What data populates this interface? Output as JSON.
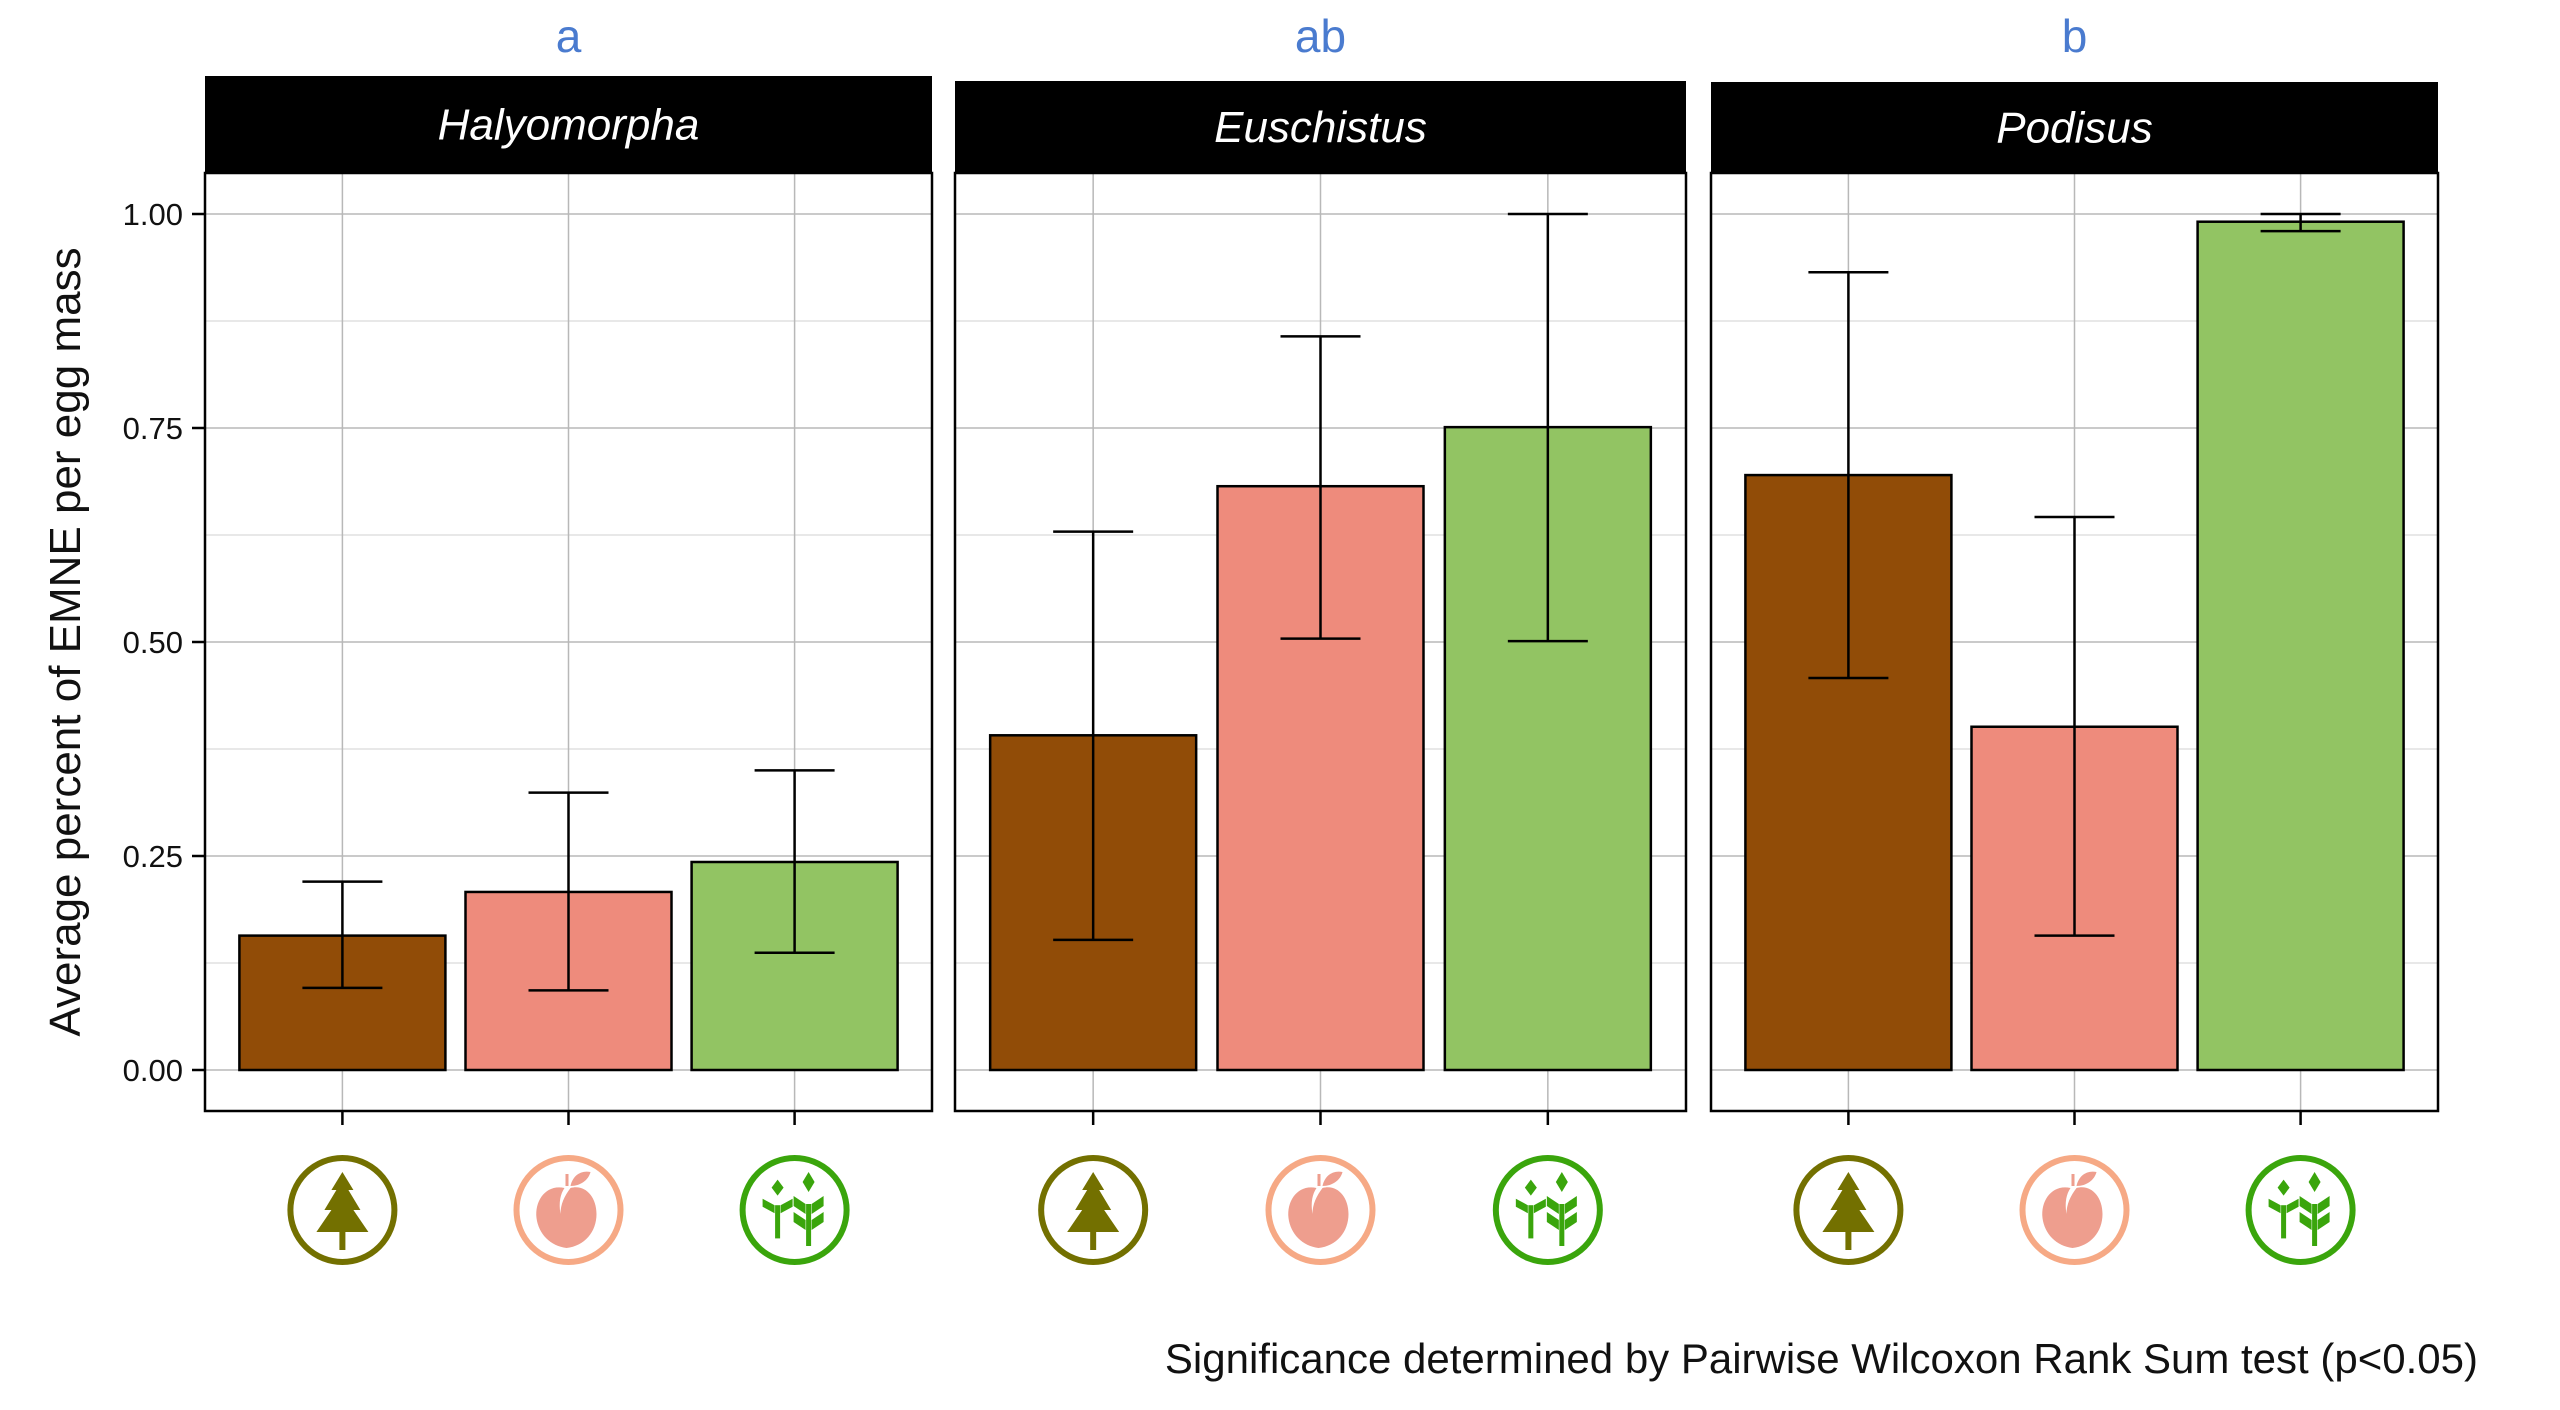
{
  "chart_data": {
    "type": "bar",
    "title": "",
    "ylabel": "Average percent of EMNE per egg mass",
    "xlabel": "",
    "ylim": [
      0,
      1.0
    ],
    "yticks": [
      "0.00",
      "0.25",
      "0.50",
      "0.75",
      "1.00"
    ],
    "ytick_values": [
      0,
      0.25,
      0.5,
      0.75,
      1.0
    ],
    "grid": true,
    "categories": [
      "forest",
      "orchard",
      "field crop"
    ],
    "category_icons": [
      "tree-icon",
      "peach-icon",
      "grain-icon"
    ],
    "category_colors": [
      "#914c07",
      "#ee8b7c",
      "#92c463"
    ],
    "icon_colors": [
      "#737000",
      "#f6a985",
      "#3aa50c"
    ],
    "icon_fill_colors": [
      "#737000",
      "#ee9e8e",
      "#3aa50c"
    ],
    "panels": [
      {
        "name": "Halyomorpha",
        "significance": "a",
        "values": [
          0.157,
          0.208,
          0.243
        ],
        "error_low": [
          0.096,
          0.093,
          0.137
        ],
        "error_high": [
          0.22,
          0.324,
          0.35
        ]
      },
      {
        "name": "Euschistus",
        "significance": "ab",
        "values": [
          0.391,
          0.682,
          0.751
        ],
        "error_low": [
          0.152,
          0.504,
          0.501
        ],
        "error_high": [
          0.629,
          0.857,
          1.0
        ]
      },
      {
        "name": "Podisus",
        "significance": "b",
        "values": [
          0.695,
          0.401,
          0.991
        ],
        "error_low": [
          0.458,
          0.157,
          0.98
        ],
        "error_high": [
          0.932,
          0.646,
          1.0
        ]
      }
    ],
    "caption": "Significance determined by Pairwise Wilcoxon Rank Sum test (p<0.05)",
    "legend": "none"
  }
}
